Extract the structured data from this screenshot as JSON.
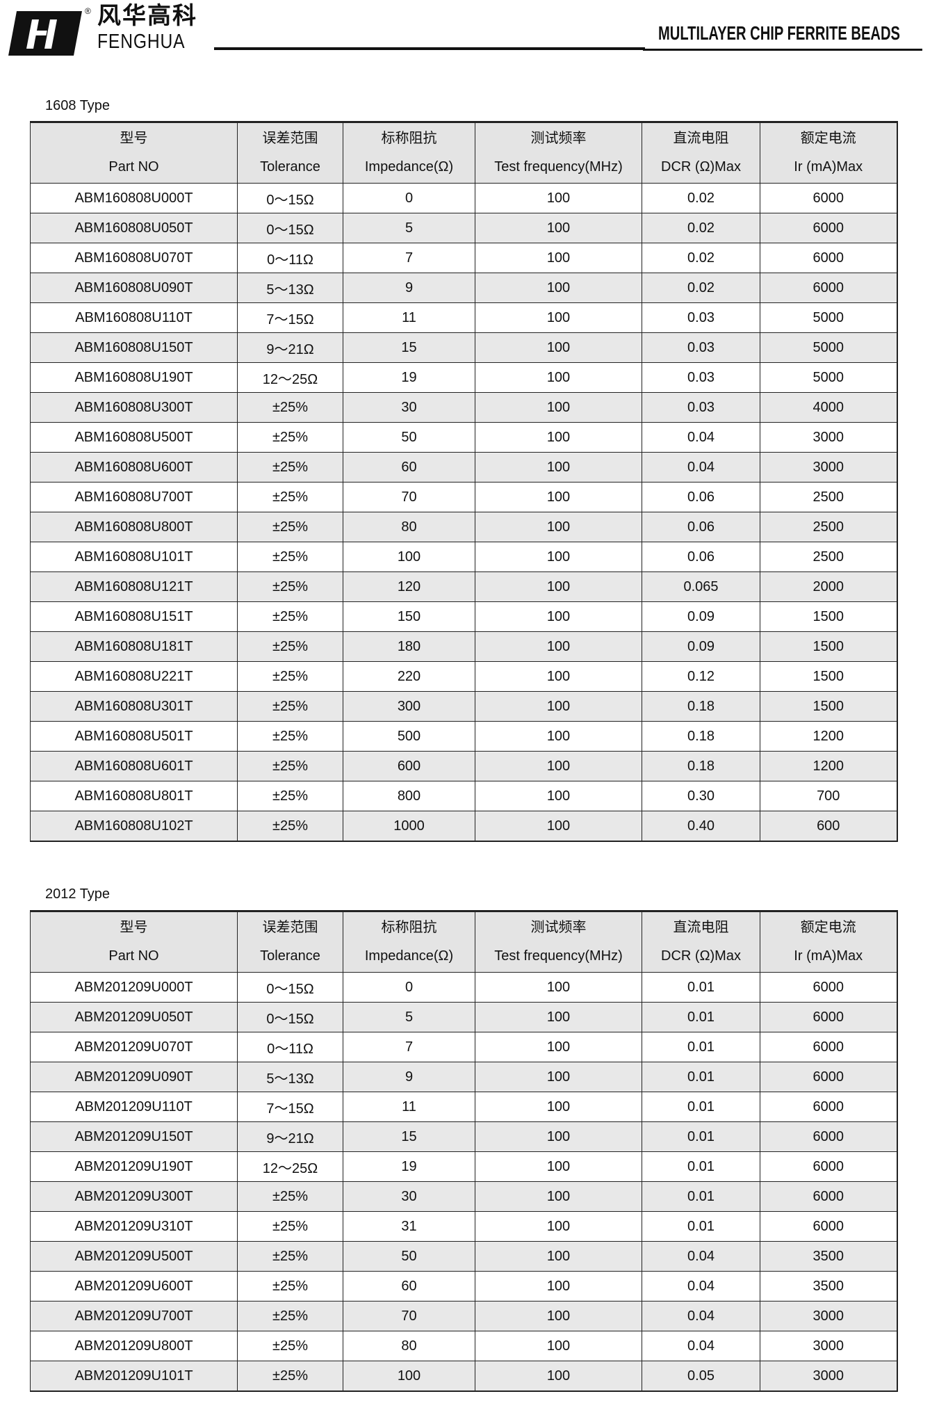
{
  "header": {
    "brand_cn": "风华高科",
    "brand_en": "FENGHUA",
    "registered": "®",
    "title": "MULTILAYER CHIP FERRITE BEADS"
  },
  "columns": [
    {
      "cn": "型号",
      "en": "Part NO"
    },
    {
      "cn": "误差范围",
      "en": "Tolerance"
    },
    {
      "cn": "标称阻抗",
      "en": "Impedance(Ω)"
    },
    {
      "cn": "测试频率",
      "en": "Test frequency(MHz)"
    },
    {
      "cn": "直流电阻",
      "en": "DCR (Ω)Max"
    },
    {
      "cn": "额定电流",
      "en": "Ir (mA)Max"
    }
  ],
  "tables": [
    {
      "label": "1608 Type",
      "rows": [
        [
          "ABM160808U000T",
          "0～15Ω",
          "0",
          "100",
          "0.02",
          "6000"
        ],
        [
          "ABM160808U050T",
          "0～15Ω",
          "5",
          "100",
          "0.02",
          "6000"
        ],
        [
          "ABM160808U070T",
          "0～11Ω",
          "7",
          "100",
          "0.02",
          "6000"
        ],
        [
          "ABM160808U090T",
          "5～13Ω",
          "9",
          "100",
          "0.02",
          "6000"
        ],
        [
          "ABM160808U110T",
          "7～15Ω",
          "11",
          "100",
          "0.03",
          "5000"
        ],
        [
          "ABM160808U150T",
          "9～21Ω",
          "15",
          "100",
          "0.03",
          "5000"
        ],
        [
          "ABM160808U190T",
          "12～25Ω",
          "19",
          "100",
          "0.03",
          "5000"
        ],
        [
          "ABM160808U300T",
          "±25%",
          "30",
          "100",
          "0.03",
          "4000"
        ],
        [
          "ABM160808U500T",
          "±25%",
          "50",
          "100",
          "0.04",
          "3000"
        ],
        [
          "ABM160808U600T",
          "±25%",
          "60",
          "100",
          "0.04",
          "3000"
        ],
        [
          "ABM160808U700T",
          "±25%",
          "70",
          "100",
          "0.06",
          "2500"
        ],
        [
          "ABM160808U800T",
          "±25%",
          "80",
          "100",
          "0.06",
          "2500"
        ],
        [
          "ABM160808U101T",
          "±25%",
          "100",
          "100",
          "0.06",
          "2500"
        ],
        [
          "ABM160808U121T",
          "±25%",
          "120",
          "100",
          "0.065",
          "2000"
        ],
        [
          "ABM160808U151T",
          "±25%",
          "150",
          "100",
          "0.09",
          "1500"
        ],
        [
          "ABM160808U181T",
          "±25%",
          "180",
          "100",
          "0.09",
          "1500"
        ],
        [
          "ABM160808U221T",
          "±25%",
          "220",
          "100",
          "0.12",
          "1500"
        ],
        [
          "ABM160808U301T",
          "±25%",
          "300",
          "100",
          "0.18",
          "1500"
        ],
        [
          "ABM160808U501T",
          "±25%",
          "500",
          "100",
          "0.18",
          "1200"
        ],
        [
          "ABM160808U601T",
          "±25%",
          "600",
          "100",
          "0.18",
          "1200"
        ],
        [
          "ABM160808U801T",
          "±25%",
          "800",
          "100",
          "0.30",
          "700"
        ],
        [
          "ABM160808U102T",
          "±25%",
          "1000",
          "100",
          "0.40",
          "600"
        ]
      ]
    },
    {
      "label": "2012 Type",
      "rows": [
        [
          "ABM201209U000T",
          "0～15Ω",
          "0",
          "100",
          "0.01",
          "6000"
        ],
        [
          "ABM201209U050T",
          "0～15Ω",
          "5",
          "100",
          "0.01",
          "6000"
        ],
        [
          "ABM201209U070T",
          "0～11Ω",
          "7",
          "100",
          "0.01",
          "6000"
        ],
        [
          "ABM201209U090T",
          "5～13Ω",
          "9",
          "100",
          "0.01",
          "6000"
        ],
        [
          "ABM201209U110T",
          "7～15Ω",
          "11",
          "100",
          "0.01",
          "6000"
        ],
        [
          "ABM201209U150T",
          "9～21Ω",
          "15",
          "100",
          "0.01",
          "6000"
        ],
        [
          "ABM201209U190T",
          "12～25Ω",
          "19",
          "100",
          "0.01",
          "6000"
        ],
        [
          "ABM201209U300T",
          "±25%",
          "30",
          "100",
          "0.01",
          "6000"
        ],
        [
          "ABM201209U310T",
          "±25%",
          "31",
          "100",
          "0.01",
          "6000"
        ],
        [
          "ABM201209U500T",
          "±25%",
          "50",
          "100",
          "0.04",
          "3500"
        ],
        [
          "ABM201209U600T",
          "±25%",
          "60",
          "100",
          "0.04",
          "3500"
        ],
        [
          "ABM201209U700T",
          "±25%",
          "70",
          "100",
          "0.04",
          "3000"
        ],
        [
          "ABM201209U800T",
          "±25%",
          "80",
          "100",
          "0.04",
          "3000"
        ],
        [
          "ABM201209U101T",
          "±25%",
          "100",
          "100",
          "0.05",
          "3000"
        ]
      ]
    }
  ]
}
